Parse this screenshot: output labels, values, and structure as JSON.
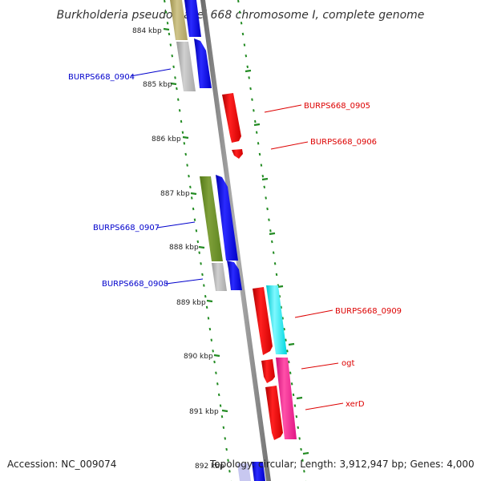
{
  "title": "Burkholderia pseudomallei 668 chromosome I, complete genome",
  "footer": {
    "accession": "Accession: NC_009074",
    "summary": "Topology: circular; Length: 3,912,947 bp; Genes: 4,000"
  },
  "ticks": [
    "884 kbp",
    "885 kbp",
    "886 kbp",
    "887 kbp",
    "888 kbp",
    "889 kbp",
    "890 kbp",
    "891 kbp",
    "892 kbp"
  ],
  "genes": [
    {
      "name": "BURPS668_0904",
      "color": "#0000cc"
    },
    {
      "name": "BURPS668_0905",
      "color": "#dd0000"
    },
    {
      "name": "BURPS668_0906",
      "color": "#dd0000"
    },
    {
      "name": "BURPS668_0907",
      "color": "#0000cc"
    },
    {
      "name": "BURPS668_0908",
      "color": "#0000cc"
    },
    {
      "name": "BURPS668_0909",
      "color": "#dd0000"
    },
    {
      "name": "ogt",
      "color": "#dd0000"
    },
    {
      "name": "xerD",
      "color": "#dd0000"
    }
  ],
  "colors": {
    "backbone": "#888888",
    "forward_cds": "#0000ff",
    "reverse_cds": "#ff0000",
    "cog_olive": "#b8ad6a",
    "cog_gray": "#b0b0b0",
    "cog_green": "#6b8e23",
    "cog_cyan": "#00e5ee",
    "cog_pink": "#ff1493",
    "tick_mark": "#228b22"
  }
}
